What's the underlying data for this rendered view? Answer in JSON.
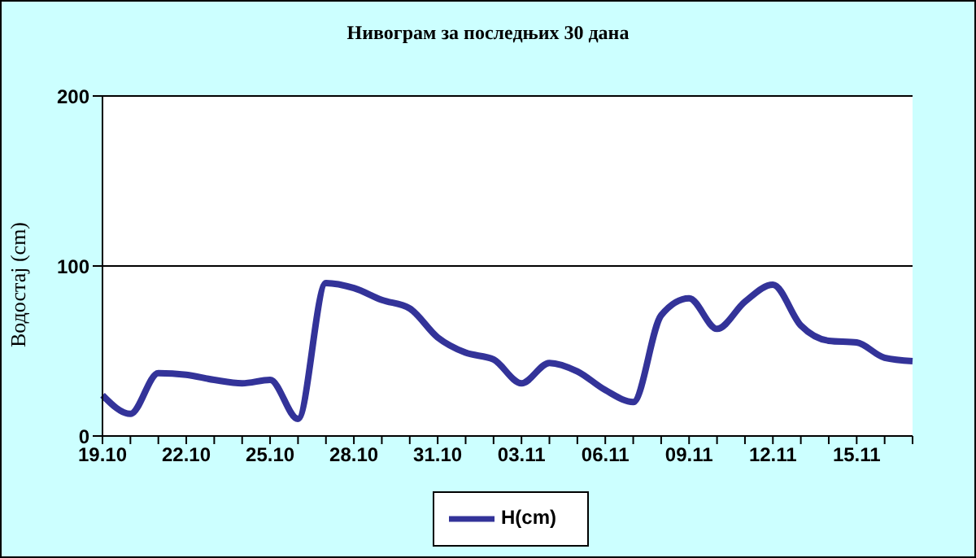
{
  "chart_data": {
    "type": "line",
    "title": "Нивограм за последњих 30 дана",
    "ylabel": "Водостај (cm)",
    "categories": [
      "19.10",
      null,
      null,
      "22.10",
      null,
      null,
      "25.10",
      null,
      null,
      "28.10",
      null,
      null,
      "31.10",
      null,
      null,
      "03.11",
      null,
      null,
      "06.11",
      null,
      null,
      "09.11",
      null,
      null,
      "12.11",
      null,
      null,
      "15.11",
      null,
      null
    ],
    "series": [
      {
        "name": "H(cm)",
        "color": "#333399",
        "values": [
          24,
          13,
          37,
          36,
          33,
          31,
          33,
          10,
          90,
          87,
          80,
          75,
          58,
          49,
          45,
          31,
          43,
          38,
          27,
          20,
          71,
          81,
          63,
          79,
          89,
          65,
          56,
          55,
          46,
          44
        ]
      }
    ],
    "ylim": [
      0,
      200
    ],
    "yticks": [
      0,
      100,
      200
    ],
    "grid": "y",
    "legend": "bottom",
    "marker": "none",
    "line_style": "solid"
  }
}
